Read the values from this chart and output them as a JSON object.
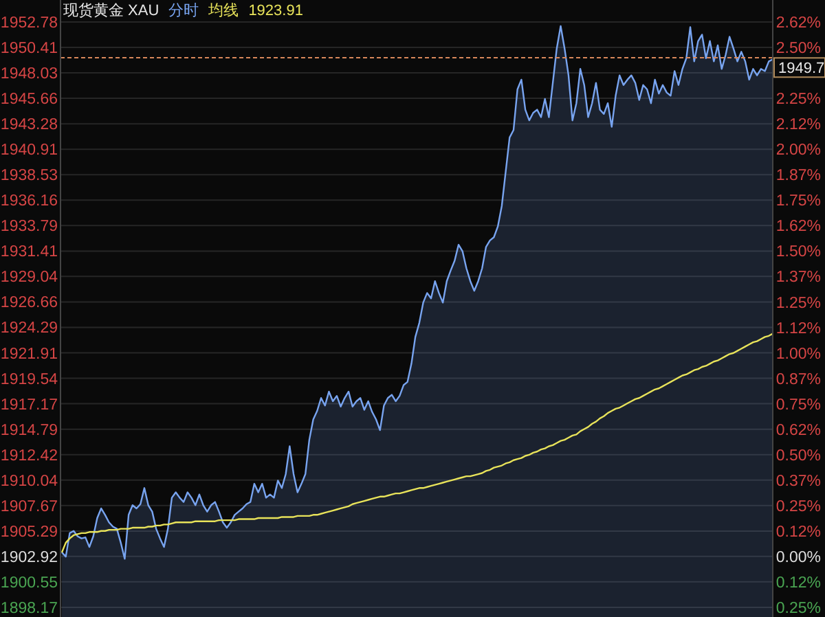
{
  "chart_data": {
    "type": "area",
    "title": "现货黄金 XAU",
    "grid": true,
    "categories": [
      null,
      null,
      null,
      null,
      null,
      null,
      null,
      null,
      null,
      null,
      null,
      null,
      null,
      null,
      null,
      null,
      null,
      null,
      null,
      null,
      null,
      null,
      null,
      null,
      null,
      null,
      null,
      null,
      null,
      null,
      null,
      null,
      null,
      null,
      null,
      null,
      null,
      null,
      null,
      null,
      null,
      null,
      null,
      null,
      null,
      null,
      null,
      null,
      null,
      null,
      null,
      null,
      null,
      null,
      null,
      null,
      null,
      null,
      null,
      null,
      null,
      null,
      null,
      null,
      null,
      null,
      null,
      null,
      null,
      null,
      null,
      null,
      null,
      null,
      null,
      null,
      null,
      null,
      null,
      null,
      null,
      null,
      null,
      null,
      null,
      null,
      null,
      null,
      null,
      null,
      null,
      null,
      null,
      null,
      null,
      null,
      null,
      null,
      null,
      null,
      null,
      null,
      null,
      null,
      null,
      null,
      null,
      null,
      null,
      null,
      null,
      null,
      null,
      null,
      null,
      null,
      null,
      null,
      null,
      null,
      null,
      null,
      null,
      null,
      null,
      null,
      null,
      null,
      null,
      null,
      null,
      null,
      null,
      null,
      null,
      null,
      null,
      null,
      null,
      null,
      null,
      null,
      null,
      null,
      null,
      null,
      null,
      null,
      null,
      null,
      null,
      null,
      null,
      null,
      null,
      null,
      null,
      null,
      null,
      null,
      null,
      null,
      null,
      null,
      null,
      null,
      null,
      null,
      null,
      null,
      null,
      null,
      null,
      null,
      null,
      null,
      null,
      null,
      null,
      null,
      null,
      null
    ],
    "ylim": [
      1897.27,
      1954.83
    ],
    "yticks": [
      {
        "value": 1952.78,
        "label": "1952.78"
      },
      {
        "value": 1950.41,
        "label": "1950.41"
      },
      {
        "value": 1948.03,
        "label": "1948.03"
      },
      {
        "value": 1945.66,
        "label": "1945.66"
      },
      {
        "value": 1943.28,
        "label": "1943.28"
      },
      {
        "value": 1940.91,
        "label": "1940.91"
      },
      {
        "value": 1938.53,
        "label": "1938.53"
      },
      {
        "value": 1936.16,
        "label": "1936.16"
      },
      {
        "value": 1933.79,
        "label": "1933.79"
      },
      {
        "value": 1931.41,
        "label": "1931.41"
      },
      {
        "value": 1929.04,
        "label": "1929.04"
      },
      {
        "value": 1926.66,
        "label": "1926.66"
      },
      {
        "value": 1924.29,
        "label": "1924.29"
      },
      {
        "value": 1921.91,
        "label": "1921.91"
      },
      {
        "value": 1919.54,
        "label": "1919.54"
      },
      {
        "value": 1917.17,
        "label": "1917.17"
      },
      {
        "value": 1914.79,
        "label": "1914.79"
      },
      {
        "value": 1912.42,
        "label": "1912.42"
      },
      {
        "value": 1910.04,
        "label": "1910.04"
      },
      {
        "value": 1907.67,
        "label": "1907.67"
      },
      {
        "value": 1905.29,
        "label": "1905.29"
      },
      {
        "value": 1902.92,
        "label": "1902.92"
      },
      {
        "value": 1900.55,
        "label": "1900.55"
      },
      {
        "value": 1898.17,
        "label": "1898.17"
      }
    ],
    "y2lim": [
      -0.297,
      2.733
    ],
    "y2ticks": [
      {
        "value": 2.625,
        "label": "2.62%"
      },
      {
        "value": 2.5,
        "label": "2.50%"
      },
      {
        "value": 2.25,
        "label": "2.25%"
      },
      {
        "value": 2.125,
        "label": "2.12%"
      },
      {
        "value": 2.0,
        "label": "2.00%"
      },
      {
        "value": 1.875,
        "label": "1.87%"
      },
      {
        "value": 1.75,
        "label": "1.75%"
      },
      {
        "value": 1.625,
        "label": "1.62%"
      },
      {
        "value": 1.5,
        "label": "1.50%"
      },
      {
        "value": 1.375,
        "label": "1.37%"
      },
      {
        "value": 1.25,
        "label": "1.25%"
      },
      {
        "value": 1.125,
        "label": "1.12%"
      },
      {
        "value": 1.0,
        "label": "1.00%"
      },
      {
        "value": 0.875,
        "label": "0.87%"
      },
      {
        "value": 0.75,
        "label": "0.75%"
      },
      {
        "value": 0.625,
        "label": "0.62%"
      },
      {
        "value": 0.5,
        "label": "0.50%"
      },
      {
        "value": 0.375,
        "label": "0.37%"
      },
      {
        "value": 0.25,
        "label": "0.25%"
      },
      {
        "value": 0.125,
        "label": "0.12%"
      },
      {
        "value": 0.0,
        "label": "0.00%"
      },
      {
        "value": -0.125,
        "label": "0.12%"
      },
      {
        "value": -0.25,
        "label": "0.25%"
      }
    ],
    "ref_lines": [
      {
        "axis": "y",
        "value": 1949.45,
        "color": "#d8875a",
        "line_style": "dashed"
      }
    ],
    "annotations": [
      "1923.91",
      "1949.7"
    ],
    "series": [
      {
        "name": "分时",
        "color": "#78a4f0",
        "values": [
          1903.3,
          1902.9,
          1905.1,
          1905.3,
          1904.8,
          1904.6,
          1904.7,
          1903.8,
          1904.8,
          1906.5,
          1907.4,
          1906.8,
          1906.1,
          1905.7,
          1905.5,
          1904.2,
          1902.7,
          1906.8,
          1907.7,
          1907.4,
          1907.8,
          1909.3,
          1907.7,
          1907.1,
          1905.5,
          1904.6,
          1903.8,
          1905.5,
          1908.4,
          1908.9,
          1908.4,
          1908.0,
          1908.9,
          1908.4,
          1907.7,
          1908.7,
          1907.7,
          1907.1,
          1907.7,
          1908.0,
          1907.1,
          1906.1,
          1905.6,
          1906.1,
          1906.8,
          1907.1,
          1907.4,
          1907.8,
          1908.0,
          1909.7,
          1908.9,
          1909.7,
          1908.4,
          1908.7,
          1908.4,
          1910.0,
          1909.3,
          1910.6,
          1913.2,
          1910.6,
          1908.9,
          1909.7,
          1910.6,
          1913.8,
          1915.7,
          1916.5,
          1917.7,
          1917.0,
          1918.3,
          1917.4,
          1917.9,
          1916.9,
          1917.7,
          1918.3,
          1916.9,
          1917.4,
          1917.7,
          1916.6,
          1917.4,
          1916.4,
          1915.7,
          1914.7,
          1917.0,
          1917.7,
          1918.0,
          1917.4,
          1917.9,
          1918.9,
          1919.2,
          1920.9,
          1923.4,
          1924.7,
          1926.6,
          1927.5,
          1927.0,
          1928.6,
          1927.5,
          1926.6,
          1928.6,
          1929.6,
          1930.5,
          1932.0,
          1931.4,
          1929.8,
          1928.6,
          1927.7,
          1928.6,
          1929.8,
          1931.8,
          1932.4,
          1932.7,
          1933.7,
          1935.6,
          1938.8,
          1942.0,
          1942.7,
          1946.5,
          1947.4,
          1944.6,
          1943.6,
          1944.3,
          1944.6,
          1943.9,
          1945.6,
          1943.9,
          1947.1,
          1950.3,
          1952.4,
          1950.3,
          1947.8,
          1943.6,
          1945.2,
          1948.4,
          1946.9,
          1943.9,
          1945.2,
          1947.1,
          1944.6,
          1944.2,
          1945.2,
          1943.0,
          1945.9,
          1947.8,
          1946.9,
          1947.4,
          1947.8,
          1947.1,
          1945.5,
          1946.9,
          1946.5,
          1945.2,
          1947.4,
          1946.1,
          1946.9,
          1946.2,
          1945.9,
          1948.2,
          1946.9,
          1948.4,
          1949.4,
          1952.3,
          1949.1,
          1951.0,
          1951.6,
          1949.4,
          1951.0,
          1949.1,
          1950.6,
          1948.4,
          1949.7,
          1951.4,
          1950.3,
          1949.1,
          1950.0,
          1949.1,
          1947.4,
          1948.4,
          1947.8,
          1948.4,
          1948.2,
          1949.1,
          1949.3
        ]
      },
      {
        "name": "均线",
        "type": "line",
        "color": "#e8e35a",
        "values": [
          1903.3,
          1904.2,
          1904.6,
          1904.9,
          1905.0,
          1905.1,
          1905.1,
          1905.2,
          1905.2,
          1905.2,
          1905.3,
          1905.3,
          1905.4,
          1905.4,
          1905.4,
          1905.5,
          1905.5,
          1905.5,
          1905.6,
          1905.6,
          1905.6,
          1905.6,
          1905.7,
          1905.7,
          1905.8,
          1905.8,
          1905.9,
          1905.9,
          1906.0,
          1906.1,
          1906.1,
          1906.1,
          1906.1,
          1906.1,
          1906.2,
          1906.2,
          1906.2,
          1906.2,
          1906.2,
          1906.2,
          1906.3,
          1906.3,
          1906.3,
          1906.3,
          1906.3,
          1906.4,
          1906.4,
          1906.4,
          1906.4,
          1906.4,
          1906.5,
          1906.5,
          1906.5,
          1906.5,
          1906.5,
          1906.5,
          1906.6,
          1906.6,
          1906.6,
          1906.6,
          1906.7,
          1906.7,
          1906.7,
          1906.7,
          1906.8,
          1906.8,
          1906.9,
          1907.0,
          1907.1,
          1907.2,
          1907.3,
          1907.4,
          1907.5,
          1907.6,
          1907.8,
          1907.9,
          1908.0,
          1908.1,
          1908.2,
          1908.3,
          1908.4,
          1908.5,
          1908.5,
          1908.6,
          1908.7,
          1908.8,
          1908.8,
          1908.9,
          1909.0,
          1909.1,
          1909.2,
          1909.3,
          1909.3,
          1909.4,
          1909.5,
          1909.6,
          1909.7,
          1909.8,
          1909.9,
          1910.0,
          1910.1,
          1910.2,
          1910.3,
          1910.4,
          1910.4,
          1910.5,
          1910.6,
          1910.7,
          1910.9,
          1911.0,
          1911.2,
          1911.3,
          1911.4,
          1911.6,
          1911.7,
          1911.9,
          1912.0,
          1912.1,
          1912.3,
          1912.4,
          1912.6,
          1912.7,
          1912.9,
          1913.0,
          1913.2,
          1913.3,
          1913.5,
          1913.7,
          1913.8,
          1914.0,
          1914.2,
          1914.3,
          1914.6,
          1914.8,
          1915.0,
          1915.3,
          1915.5,
          1915.8,
          1916.0,
          1916.3,
          1916.5,
          1916.7,
          1916.8,
          1917.0,
          1917.2,
          1917.4,
          1917.6,
          1917.7,
          1917.9,
          1918.1,
          1918.3,
          1918.5,
          1918.6,
          1918.8,
          1919.0,
          1919.2,
          1919.4,
          1919.6,
          1919.8,
          1919.9,
          1920.1,
          1920.3,
          1920.4,
          1920.6,
          1920.7,
          1920.9,
          1921.1,
          1921.2,
          1921.4,
          1921.6,
          1921.8,
          1921.9,
          1922.1,
          1922.3,
          1922.5,
          1922.7,
          1922.9,
          1923.0,
          1923.2,
          1923.4,
          1923.5,
          1923.7
        ]
      }
    ]
  }
}
